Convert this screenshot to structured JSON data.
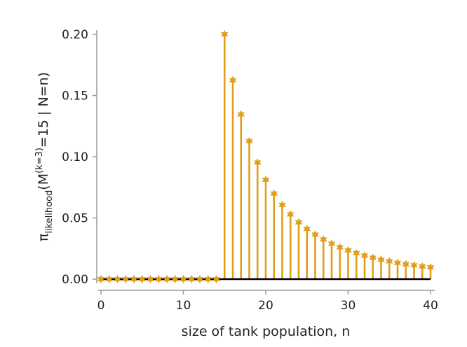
{
  "chart_data": {
    "type": "stem",
    "xlabel": "size of tank population, n",
    "ylabel": {
      "base": "π",
      "sub": "likelihood",
      "open": "(M",
      "sup": "(k=3)",
      "rest": "=15 | N=n)"
    },
    "xlim": [
      0,
      40
    ],
    "ylim": [
      0,
      0.2
    ],
    "xticks": [
      0,
      10,
      20,
      30,
      40
    ],
    "yticks": [
      0.0,
      0.05,
      0.1,
      0.15,
      0.2
    ],
    "xtick_labels": [
      "0",
      "10",
      "20",
      "30",
      "40"
    ],
    "ytick_labels": [
      "0.00",
      "0.05",
      "0.10",
      "0.15",
      "0.20"
    ],
    "x": [
      0,
      1,
      2,
      3,
      4,
      5,
      6,
      7,
      8,
      9,
      10,
      11,
      12,
      13,
      14,
      15,
      16,
      17,
      18,
      19,
      20,
      21,
      22,
      23,
      24,
      25,
      26,
      27,
      28,
      29,
      30,
      31,
      32,
      33,
      34,
      35,
      36,
      37,
      38,
      39,
      40
    ],
    "y": [
      0,
      0,
      0,
      0,
      0,
      0,
      0,
      0,
      0,
      0,
      0,
      0,
      0,
      0,
      0,
      0.2,
      0.1625,
      0.1345,
      0.1127,
      0.0952,
      0.0812,
      0.0699,
      0.0606,
      0.0529,
      0.0464,
      0.041,
      0.0364,
      0.0324,
      0.029,
      0.026,
      0.0235,
      0.0212,
      0.0192,
      0.0175,
      0.0159,
      0.0146,
      0.0133,
      0.0122,
      0.0113,
      0.0104,
      0.0096
    ],
    "colors": {
      "stem": "#E19E1B",
      "baseline": "#000000",
      "axis": "#9a9a9a"
    }
  }
}
